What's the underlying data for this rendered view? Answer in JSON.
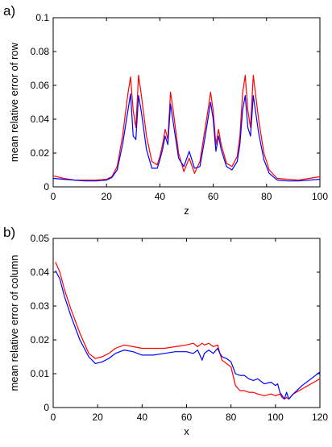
{
  "chart_data": [
    {
      "type": "line",
      "panel_tag": "a)",
      "title": "",
      "xlabel": "z",
      "ylabel": "mean relative error of row",
      "xlim": [
        0,
        100
      ],
      "ylim": [
        0,
        0.1
      ],
      "xticks": [
        "0",
        "20",
        "40",
        "60",
        "80",
        "100"
      ],
      "yticks": [
        "0",
        "0.02",
        "0.04",
        "0.06",
        "0.08",
        "0.1"
      ],
      "grid": false,
      "legend": "none",
      "series": [
        {
          "color": "#ff0000",
          "x": [
            0,
            4,
            8,
            12,
            16,
            20,
            22,
            24,
            26,
            28,
            29,
            30,
            31,
            32,
            33,
            35,
            37,
            39,
            40,
            41,
            42,
            43,
            44,
            45,
            47,
            49,
            51,
            53,
            55,
            57,
            58,
            59,
            60,
            61,
            62,
            63,
            65,
            67,
            69,
            70,
            71,
            72,
            73,
            74,
            75,
            77,
            79,
            81,
            84,
            88,
            92,
            96,
            100
          ],
          "y": [
            0.0065,
            0.005,
            0.004,
            0.004,
            0.004,
            0.0045,
            0.006,
            0.012,
            0.03,
            0.055,
            0.065,
            0.045,
            0.035,
            0.066,
            0.055,
            0.03,
            0.015,
            0.013,
            0.018,
            0.025,
            0.034,
            0.028,
            0.056,
            0.045,
            0.02,
            0.009,
            0.017,
            0.008,
            0.015,
            0.035,
            0.045,
            0.056,
            0.045,
            0.025,
            0.034,
            0.025,
            0.014,
            0.012,
            0.018,
            0.03,
            0.055,
            0.066,
            0.045,
            0.035,
            0.066,
            0.04,
            0.02,
            0.01,
            0.005,
            0.0045,
            0.004,
            0.005,
            0.006
          ]
        },
        {
          "color": "#0000ff",
          "x": [
            0,
            4,
            8,
            12,
            16,
            20,
            22,
            24,
            26,
            28,
            29,
            30,
            31,
            32,
            33,
            35,
            37,
            39,
            40,
            41,
            42,
            43,
            44,
            45,
            47,
            49,
            51,
            53,
            55,
            57,
            58,
            59,
            60,
            61,
            62,
            63,
            65,
            67,
            69,
            70,
            71,
            72,
            73,
            74,
            75,
            77,
            79,
            81,
            84,
            88,
            92,
            96,
            100
          ],
          "y": [
            0.005,
            0.0045,
            0.004,
            0.0035,
            0.0035,
            0.004,
            0.0055,
            0.01,
            0.025,
            0.045,
            0.055,
            0.03,
            0.028,
            0.054,
            0.045,
            0.022,
            0.011,
            0.011,
            0.016,
            0.022,
            0.03,
            0.025,
            0.049,
            0.038,
            0.017,
            0.012,
            0.021,
            0.011,
            0.012,
            0.03,
            0.04,
            0.05,
            0.04,
            0.021,
            0.03,
            0.022,
            0.012,
            0.01,
            0.015,
            0.025,
            0.045,
            0.054,
            0.035,
            0.03,
            0.054,
            0.032,
            0.016,
            0.008,
            0.004,
            0.0035,
            0.0035,
            0.004,
            0.0045
          ]
        }
      ]
    },
    {
      "type": "line",
      "panel_tag": "b)",
      "title": "",
      "xlabel": "x",
      "ylabel": "mean relative error of column",
      "xlim": [
        0,
        120
      ],
      "ylim": [
        0,
        0.05
      ],
      "xticks": [
        "0",
        "20",
        "40",
        "60",
        "80",
        "100",
        "120"
      ],
      "yticks": [
        "0",
        "0.01",
        "0.02",
        "0.03",
        "0.04",
        "0.05"
      ],
      "grid": false,
      "legend": "none",
      "series": [
        {
          "color": "#ff0000",
          "x": [
            1,
            3,
            5,
            8,
            12,
            16,
            19,
            22,
            25,
            28,
            32,
            36,
            40,
            45,
            50,
            55,
            60,
            63,
            65,
            67,
            68,
            70,
            72,
            74,
            75,
            76,
            78,
            80,
            82,
            84,
            86,
            88,
            90,
            92,
            95,
            98,
            100,
            102,
            103,
            104,
            105,
            106,
            108,
            112,
            116,
            120
          ],
          "y": [
            0.043,
            0.04,
            0.035,
            0.029,
            0.022,
            0.016,
            0.0145,
            0.015,
            0.016,
            0.0175,
            0.0185,
            0.018,
            0.0175,
            0.0175,
            0.0175,
            0.018,
            0.0185,
            0.019,
            0.018,
            0.019,
            0.0185,
            0.019,
            0.018,
            0.0185,
            0.016,
            0.014,
            0.013,
            0.012,
            0.0065,
            0.005,
            0.005,
            0.0045,
            0.0045,
            0.004,
            0.0035,
            0.004,
            0.0035,
            0.004,
            0.003,
            0.0025,
            0.003,
            0.0025,
            0.004,
            0.0055,
            0.007,
            0.0085
          ]
        },
        {
          "color": "#0000ff",
          "x": [
            1,
            3,
            5,
            8,
            12,
            16,
            19,
            22,
            25,
            28,
            32,
            36,
            40,
            45,
            50,
            55,
            60,
            63,
            65,
            66,
            67,
            68,
            70,
            72,
            74,
            75,
            76,
            78,
            80,
            82,
            84,
            86,
            88,
            90,
            92,
            95,
            98,
            100,
            101,
            102,
            103,
            104,
            105,
            106,
            108,
            112,
            116,
            120
          ],
          "y": [
            0.0405,
            0.038,
            0.033,
            0.027,
            0.02,
            0.015,
            0.013,
            0.0135,
            0.0145,
            0.016,
            0.017,
            0.0165,
            0.0155,
            0.0155,
            0.016,
            0.0165,
            0.0165,
            0.016,
            0.017,
            0.0155,
            0.014,
            0.016,
            0.017,
            0.016,
            0.0175,
            0.016,
            0.015,
            0.0145,
            0.0135,
            0.01,
            0.0095,
            0.0095,
            0.0085,
            0.008,
            0.0085,
            0.007,
            0.0075,
            0.0065,
            0.007,
            0.0045,
            0.0035,
            0.0025,
            0.0045,
            0.0025,
            0.004,
            0.0065,
            0.0085,
            0.0105
          ]
        }
      ]
    }
  ]
}
